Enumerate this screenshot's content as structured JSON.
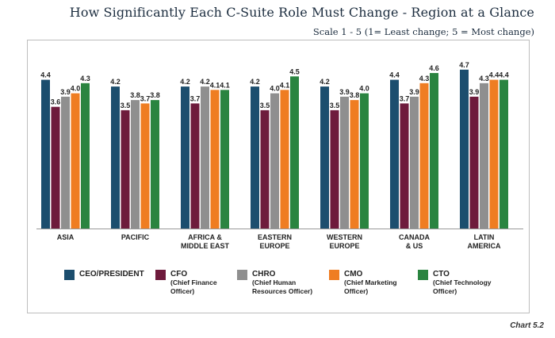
{
  "chart_data": {
    "type": "bar",
    "title": "How Significantly Each C-Suite Role Must Change - Region at a Glance",
    "subtitle": "Scale 1 - 5 (1= Least change; 5 = Most change)",
    "categories": [
      [
        "ASIA"
      ],
      [
        "PACIFIC"
      ],
      [
        "AFRICA &",
        "MIDDLE EAST"
      ],
      [
        "EASTERN",
        "EUROPE"
      ],
      [
        "WESTERN",
        "EUROPE"
      ],
      [
        "CANADA",
        "& US"
      ],
      [
        "LATIN",
        "AMERICA"
      ]
    ],
    "series": [
      {
        "name": "CEO/PRESIDENT",
        "sub": "",
        "color": "#1c4e6e",
        "values": [
          4.4,
          4.2,
          4.2,
          4.2,
          4.2,
          4.4,
          4.7
        ]
      },
      {
        "name": "CFO",
        "sub": "(Chief Finance Officer)",
        "color": "#6e1b3c",
        "values": [
          3.6,
          3.5,
          3.7,
          3.5,
          3.5,
          3.7,
          3.9
        ]
      },
      {
        "name": "CHRO",
        "sub": "(Chief Human Resources Officer)",
        "color": "#8f8f8f",
        "values": [
          3.9,
          3.8,
          4.2,
          4.0,
          3.9,
          3.9,
          4.3
        ]
      },
      {
        "name": "CMO",
        "sub": "(Chief Marketing Officer)",
        "color": "#ef7d22",
        "values": [
          4.0,
          3.7,
          4.1,
          4.1,
          3.8,
          4.3,
          4.4
        ]
      },
      {
        "name": "CTO",
        "sub": "(Chief Technology Officer)",
        "color": "#2a8440",
        "values": [
          4.3,
          3.8,
          4.1,
          4.5,
          4.0,
          4.6,
          4.4
        ]
      }
    ],
    "ylim": [
      0,
      5
    ],
    "xlabel": "",
    "ylabel": ""
  },
  "legend_labels": [
    {
      "main": "CEO/PRESIDENT",
      "sub1": "",
      "sub2": ""
    },
    {
      "main": "CFO",
      "sub1": "(Chief Finance",
      "sub2": "Officer)"
    },
    {
      "main": "CHRO",
      "sub1": "(Chief Human",
      "sub2": "Resources Officer)"
    },
    {
      "main": "CMO",
      "sub1": "(Chief Marketing",
      "sub2": "Officer)"
    },
    {
      "main": "CTO",
      "sub1": "(Chief Technology",
      "sub2": "Officer)"
    }
  ],
  "footer": {
    "chart_label": "Chart 5.2"
  }
}
